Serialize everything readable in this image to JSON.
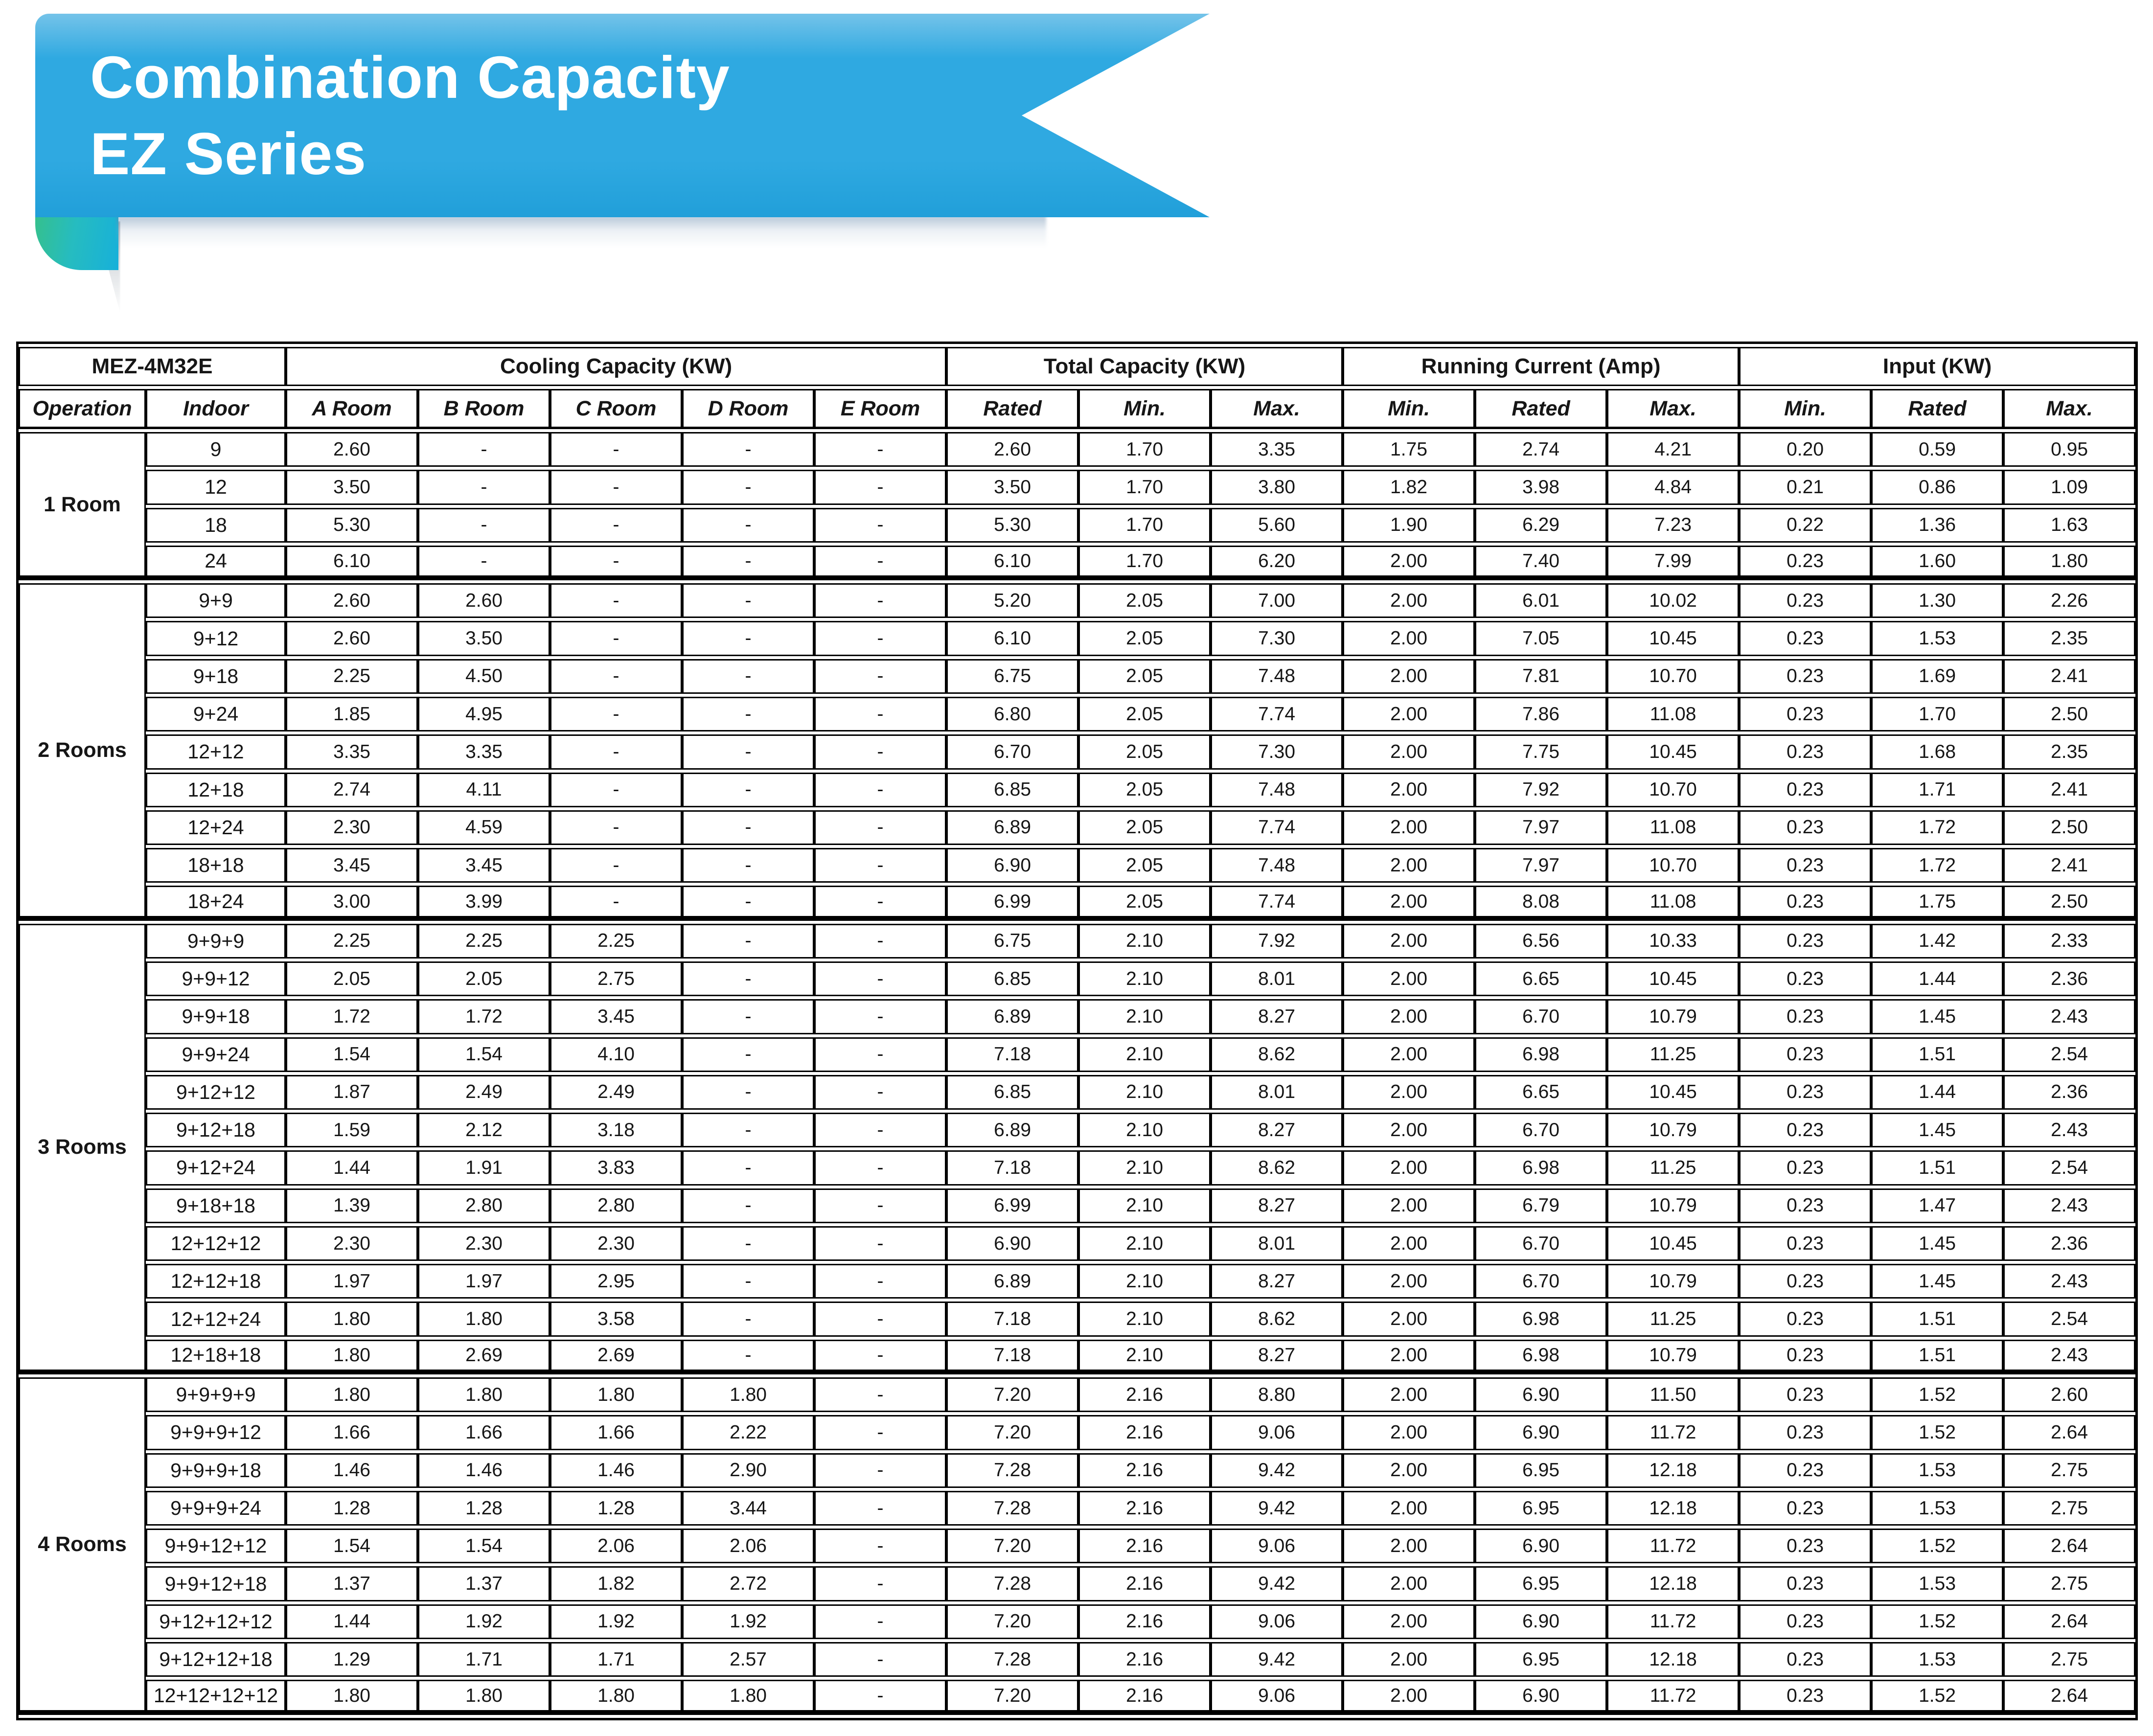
{
  "banner": {
    "title_line1": "Combination Capacity",
    "title_line2": "EZ Series"
  },
  "colors": {
    "ribbon_top": "#74c3e9",
    "ribbon_main": "#2fa9e1",
    "ribbon_bottom": "#219fd9",
    "fold_green": "#35c08d",
    "fold_teal": "#26bcc0",
    "fold_blue": "#17b0da",
    "table_line": "#000000"
  },
  "table": {
    "model": "MEZ-4M32E",
    "operation_header": "Operation",
    "indoor_header": "Indoor",
    "groups": [
      {
        "label": "Cooling Capacity (KW)",
        "cols": [
          "A Room",
          "B Room",
          "C Room",
          "D Room",
          "E Room"
        ]
      },
      {
        "label": "Total Capacity (KW)",
        "cols": [
          "Rated",
          "Min.",
          "Max."
        ]
      },
      {
        "label": "Running Current (Amp)",
        "cols": [
          "Min.",
          "Rated",
          "Max."
        ]
      },
      {
        "label": "Input (KW)",
        "cols": [
          "Min.",
          "Rated",
          "Max."
        ]
      }
    ],
    "sections": [
      {
        "label": "1 Room",
        "rows": [
          {
            "indoor": "9",
            "cells": [
              "2.60",
              "-",
              "-",
              "-",
              "-",
              "2.60",
              "1.70",
              "3.35",
              "1.75",
              "2.74",
              "4.21",
              "0.20",
              "0.59",
              "0.95"
            ]
          },
          {
            "indoor": "12",
            "cells": [
              "3.50",
              "-",
              "-",
              "-",
              "-",
              "3.50",
              "1.70",
              "3.80",
              "1.82",
              "3.98",
              "4.84",
              "0.21",
              "0.86",
              "1.09"
            ]
          },
          {
            "indoor": "18",
            "cells": [
              "5.30",
              "-",
              "-",
              "-",
              "-",
              "5.30",
              "1.70",
              "5.60",
              "1.90",
              "6.29",
              "7.23",
              "0.22",
              "1.36",
              "1.63"
            ]
          },
          {
            "indoor": "24",
            "cells": [
              "6.10",
              "-",
              "-",
              "-",
              "-",
              "6.10",
              "1.70",
              "6.20",
              "2.00",
              "7.40",
              "7.99",
              "0.23",
              "1.60",
              "1.80"
            ]
          }
        ]
      },
      {
        "label": "2 Rooms",
        "rows": [
          {
            "indoor": "9+9",
            "cells": [
              "2.60",
              "2.60",
              "-",
              "-",
              "-",
              "5.20",
              "2.05",
              "7.00",
              "2.00",
              "6.01",
              "10.02",
              "0.23",
              "1.30",
              "2.26"
            ]
          },
          {
            "indoor": "9+12",
            "cells": [
              "2.60",
              "3.50",
              "-",
              "-",
              "-",
              "6.10",
              "2.05",
              "7.30",
              "2.00",
              "7.05",
              "10.45",
              "0.23",
              "1.53",
              "2.35"
            ]
          },
          {
            "indoor": "9+18",
            "cells": [
              "2.25",
              "4.50",
              "-",
              "-",
              "-",
              "6.75",
              "2.05",
              "7.48",
              "2.00",
              "7.81",
              "10.70",
              "0.23",
              "1.69",
              "2.41"
            ]
          },
          {
            "indoor": "9+24",
            "cells": [
              "1.85",
              "4.95",
              "-",
              "-",
              "-",
              "6.80",
              "2.05",
              "7.74",
              "2.00",
              "7.86",
              "11.08",
              "0.23",
              "1.70",
              "2.50"
            ]
          },
          {
            "indoor": "12+12",
            "cells": [
              "3.35",
              "3.35",
              "-",
              "-",
              "-",
              "6.70",
              "2.05",
              "7.30",
              "2.00",
              "7.75",
              "10.45",
              "0.23",
              "1.68",
              "2.35"
            ]
          },
          {
            "indoor": "12+18",
            "cells": [
              "2.74",
              "4.11",
              "-",
              "-",
              "-",
              "6.85",
              "2.05",
              "7.48",
              "2.00",
              "7.92",
              "10.70",
              "0.23",
              "1.71",
              "2.41"
            ]
          },
          {
            "indoor": "12+24",
            "cells": [
              "2.30",
              "4.59",
              "-",
              "-",
              "-",
              "6.89",
              "2.05",
              "7.74",
              "2.00",
              "7.97",
              "11.08",
              "0.23",
              "1.72",
              "2.50"
            ]
          },
          {
            "indoor": "18+18",
            "cells": [
              "3.45",
              "3.45",
              "-",
              "-",
              "-",
              "6.90",
              "2.05",
              "7.48",
              "2.00",
              "7.97",
              "10.70",
              "0.23",
              "1.72",
              "2.41"
            ]
          },
          {
            "indoor": "18+24",
            "cells": [
              "3.00",
              "3.99",
              "-",
              "-",
              "-",
              "6.99",
              "2.05",
              "7.74",
              "2.00",
              "8.08",
              "11.08",
              "0.23",
              "1.75",
              "2.50"
            ]
          }
        ]
      },
      {
        "label": "3 Rooms",
        "rows": [
          {
            "indoor": "9+9+9",
            "cells": [
              "2.25",
              "2.25",
              "2.25",
              "-",
              "-",
              "6.75",
              "2.10",
              "7.92",
              "2.00",
              "6.56",
              "10.33",
              "0.23",
              "1.42",
              "2.33"
            ]
          },
          {
            "indoor": "9+9+12",
            "cells": [
              "2.05",
              "2.05",
              "2.75",
              "-",
              "-",
              "6.85",
              "2.10",
              "8.01",
              "2.00",
              "6.65",
              "10.45",
              "0.23",
              "1.44",
              "2.36"
            ]
          },
          {
            "indoor": "9+9+18",
            "cells": [
              "1.72",
              "1.72",
              "3.45",
              "-",
              "-",
              "6.89",
              "2.10",
              "8.27",
              "2.00",
              "6.70",
              "10.79",
              "0.23",
              "1.45",
              "2.43"
            ]
          },
          {
            "indoor": "9+9+24",
            "cells": [
              "1.54",
              "1.54",
              "4.10",
              "-",
              "-",
              "7.18",
              "2.10",
              "8.62",
              "2.00",
              "6.98",
              "11.25",
              "0.23",
              "1.51",
              "2.54"
            ]
          },
          {
            "indoor": "9+12+12",
            "cells": [
              "1.87",
              "2.49",
              "2.49",
              "-",
              "-",
              "6.85",
              "2.10",
              "8.01",
              "2.00",
              "6.65",
              "10.45",
              "0.23",
              "1.44",
              "2.36"
            ]
          },
          {
            "indoor": "9+12+18",
            "cells": [
              "1.59",
              "2.12",
              "3.18",
              "-",
              "-",
              "6.89",
              "2.10",
              "8.27",
              "2.00",
              "6.70",
              "10.79",
              "0.23",
              "1.45",
              "2.43"
            ]
          },
          {
            "indoor": "9+12+24",
            "cells": [
              "1.44",
              "1.91",
              "3.83",
              "-",
              "-",
              "7.18",
              "2.10",
              "8.62",
              "2.00",
              "6.98",
              "11.25",
              "0.23",
              "1.51",
              "2.54"
            ]
          },
          {
            "indoor": "9+18+18",
            "cells": [
              "1.39",
              "2.80",
              "2.80",
              "-",
              "-",
              "6.99",
              "2.10",
              "8.27",
              "2.00",
              "6.79",
              "10.79",
              "0.23",
              "1.47",
              "2.43"
            ]
          },
          {
            "indoor": "12+12+12",
            "cells": [
              "2.30",
              "2.30",
              "2.30",
              "-",
              "-",
              "6.90",
              "2.10",
              "8.01",
              "2.00",
              "6.70",
              "10.45",
              "0.23",
              "1.45",
              "2.36"
            ]
          },
          {
            "indoor": "12+12+18",
            "cells": [
              "1.97",
              "1.97",
              "2.95",
              "-",
              "-",
              "6.89",
              "2.10",
              "8.27",
              "2.00",
              "6.70",
              "10.79",
              "0.23",
              "1.45",
              "2.43"
            ]
          },
          {
            "indoor": "12+12+24",
            "cells": [
              "1.80",
              "1.80",
              "3.58",
              "-",
              "-",
              "7.18",
              "2.10",
              "8.62",
              "2.00",
              "6.98",
              "11.25",
              "0.23",
              "1.51",
              "2.54"
            ]
          },
          {
            "indoor": "12+18+18",
            "cells": [
              "1.80",
              "2.69",
              "2.69",
              "-",
              "-",
              "7.18",
              "2.10",
              "8.27",
              "2.00",
              "6.98",
              "10.79",
              "0.23",
              "1.51",
              "2.43"
            ]
          }
        ]
      },
      {
        "label": "4 Rooms",
        "rows": [
          {
            "indoor": "9+9+9+9",
            "cells": [
              "1.80",
              "1.80",
              "1.80",
              "1.80",
              "-",
              "7.20",
              "2.16",
              "8.80",
              "2.00",
              "6.90",
              "11.50",
              "0.23",
              "1.52",
              "2.60"
            ]
          },
          {
            "indoor": "9+9+9+12",
            "cells": [
              "1.66",
              "1.66",
              "1.66",
              "2.22",
              "-",
              "7.20",
              "2.16",
              "9.06",
              "2.00",
              "6.90",
              "11.72",
              "0.23",
              "1.52",
              "2.64"
            ]
          },
          {
            "indoor": "9+9+9+18",
            "cells": [
              "1.46",
              "1.46",
              "1.46",
              "2.90",
              "-",
              "7.28",
              "2.16",
              "9.42",
              "2.00",
              "6.95",
              "12.18",
              "0.23",
              "1.53",
              "2.75"
            ]
          },
          {
            "indoor": "9+9+9+24",
            "cells": [
              "1.28",
              "1.28",
              "1.28",
              "3.44",
              "-",
              "7.28",
              "2.16",
              "9.42",
              "2.00",
              "6.95",
              "12.18",
              "0.23",
              "1.53",
              "2.75"
            ]
          },
          {
            "indoor": "9+9+12+12",
            "cells": [
              "1.54",
              "1.54",
              "2.06",
              "2.06",
              "-",
              "7.20",
              "2.16",
              "9.06",
              "2.00",
              "6.90",
              "11.72",
              "0.23",
              "1.52",
              "2.64"
            ]
          },
          {
            "indoor": "9+9+12+18",
            "cells": [
              "1.37",
              "1.37",
              "1.82",
              "2.72",
              "-",
              "7.28",
              "2.16",
              "9.42",
              "2.00",
              "6.95",
              "12.18",
              "0.23",
              "1.53",
              "2.75"
            ]
          },
          {
            "indoor": "9+12+12+12",
            "cells": [
              "1.44",
              "1.92",
              "1.92",
              "1.92",
              "-",
              "7.20",
              "2.16",
              "9.06",
              "2.00",
              "6.90",
              "11.72",
              "0.23",
              "1.52",
              "2.64"
            ]
          },
          {
            "indoor": "9+12+12+18",
            "cells": [
              "1.29",
              "1.71",
              "1.71",
              "2.57",
              "-",
              "7.28",
              "2.16",
              "9.42",
              "2.00",
              "6.95",
              "12.18",
              "0.23",
              "1.53",
              "2.75"
            ]
          },
          {
            "indoor": "12+12+12+12",
            "cells": [
              "1.80",
              "1.80",
              "1.80",
              "1.80",
              "-",
              "7.20",
              "2.16",
              "9.06",
              "2.00",
              "6.90",
              "11.72",
              "0.23",
              "1.52",
              "2.64"
            ]
          }
        ]
      }
    ]
  }
}
